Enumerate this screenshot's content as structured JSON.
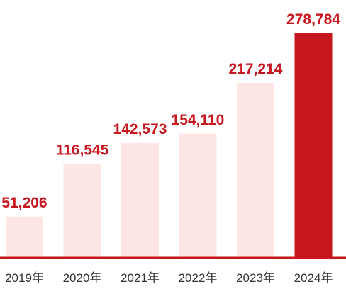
{
  "chart_data": {
    "type": "bar",
    "categories": [
      "2019年",
      "2020年",
      "2021年",
      "2022年",
      "2023年",
      "2024年"
    ],
    "values": [
      51206,
      116545,
      142573,
      154110,
      217214,
      278784
    ],
    "value_labels": [
      "51,206",
      "116,545",
      "142,573",
      "154,110",
      "217,214",
      "278,784"
    ],
    "title": "",
    "xlabel": "",
    "ylabel": "",
    "ylim": [
      0,
      278784
    ],
    "grid": false,
    "legend": "none",
    "colors": {
      "bar": "#fde6e3",
      "highlight_bar": "#c8161e",
      "value_label": "#c8161e",
      "baseline": "#c8161e",
      "tick_label": "#333333"
    },
    "highlight_index": 5
  }
}
